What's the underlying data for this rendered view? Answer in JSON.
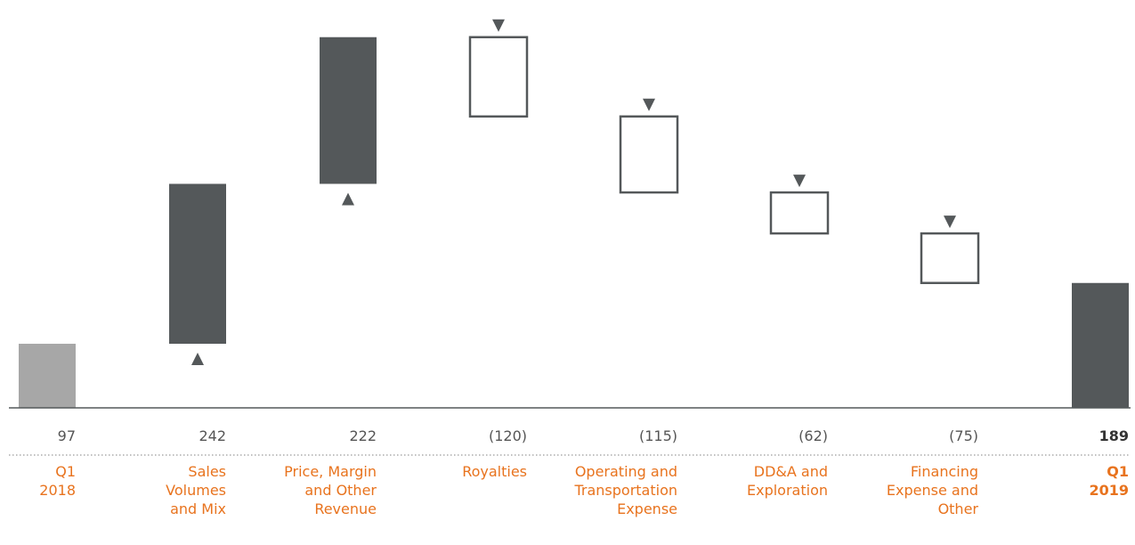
{
  "chart_data": {
    "type": "waterfall",
    "categories": [
      [
        "Q1",
        "2018"
      ],
      [
        "Sales",
        "Volumes",
        "and Mix"
      ],
      [
        "Price, Margin",
        "and Other",
        "Revenue"
      ],
      [
        "Royalties"
      ],
      [
        "Operating and",
        "Transportation",
        "Expense"
      ],
      [
        "DD&A and",
        "Exploration"
      ],
      [
        "Financing",
        "Expense and",
        "Other"
      ],
      [
        "Q1",
        "2019"
      ]
    ],
    "values": [
      97,
      242,
      222,
      -120,
      -115,
      -62,
      -75,
      189
    ],
    "value_labels": [
      "97",
      "242",
      "222",
      "(120)",
      "(115)",
      "(62)",
      "(75)",
      "189"
    ],
    "kinds": [
      "total",
      "increase",
      "increase",
      "decrease",
      "decrease",
      "decrease",
      "decrease",
      "total"
    ],
    "colors": {
      "start_total": "#a7a7a7",
      "increase": "#54585a",
      "decrease_fill": "#ffffff",
      "decrease_stroke": "#54585a",
      "end_total": "#54585a",
      "label": "#e8731e",
      "value": "#555555",
      "axis": "#54585a",
      "divider": "#9a9a9a"
    },
    "ylim": [
      0,
      570
    ]
  }
}
